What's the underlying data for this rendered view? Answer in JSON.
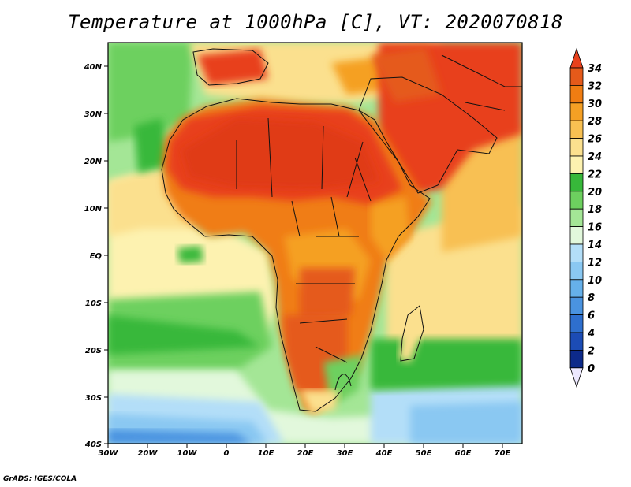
{
  "title": "Temperature at 1000hPa [C], VT: 2020070818",
  "credit": "GrADS: IGES/COLA",
  "axes": {
    "x_ticks": [
      "30W",
      "20W",
      "10W",
      "0",
      "10E",
      "20E",
      "30E",
      "40E",
      "50E",
      "60E",
      "70E"
    ],
    "y_ticks": [
      "40N",
      "30N",
      "20N",
      "10N",
      "EQ",
      "10S",
      "20S",
      "30S",
      "40S"
    ]
  },
  "colorbar": {
    "labels": [
      "34",
      "32",
      "30",
      "28",
      "26",
      "24",
      "22",
      "20",
      "18",
      "16",
      "14",
      "12",
      "10",
      "8",
      "6",
      "4",
      "2",
      "0"
    ],
    "colors_top_to_bottom": [
      "#e8411c",
      "#e55a1a",
      "#f07d12",
      "#f5a024",
      "#f8c052",
      "#fbe08e",
      "#fdf2b0",
      "#37b83a",
      "#6dd05f",
      "#a4e696",
      "#e2f8dc",
      "#b3def8",
      "#8ac8f2",
      "#66b0ea",
      "#4a93e0",
      "#2e6fce",
      "#1c4cb5",
      "#0d2a8a",
      "#0a1a66",
      "#ece8ff"
    ]
  }
}
